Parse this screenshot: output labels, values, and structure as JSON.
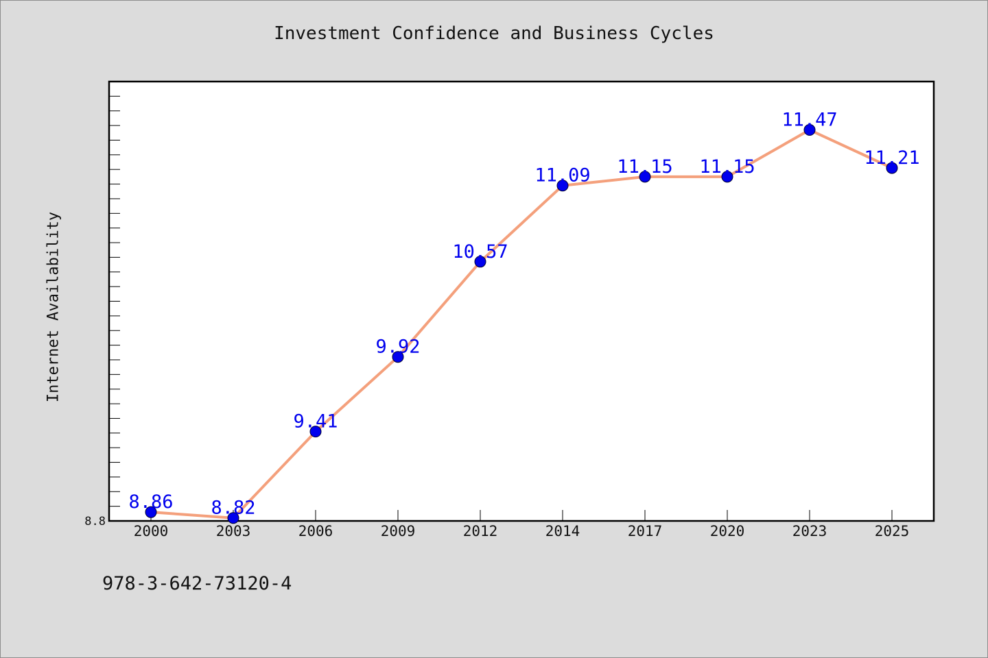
{
  "chart_data": {
    "type": "line",
    "title": "Investment Confidence and Business Cycles",
    "xlabel": "",
    "ylabel": "Internet Availability",
    "categories": [
      "2000",
      "2003",
      "2006",
      "2009",
      "2012",
      "2014",
      "2017",
      "2020",
      "2023",
      "2025"
    ],
    "series": [
      {
        "values": [
          8.86,
          8.82,
          9.41,
          9.92,
          10.57,
          11.09,
          11.15,
          11.15,
          11.47,
          11.21
        ],
        "labels": [
          "8.86",
          "8.82",
          "9.41",
          "9.92",
          "10.57",
          "11.09",
          "11.15",
          "11.15",
          "11.47",
          "11.21"
        ]
      }
    ],
    "ylim": [
      8.8,
      11.8
    ],
    "yticks_labeled": [
      "8.8"
    ],
    "grid": false,
    "legend": "none",
    "colors": {
      "line": "#f4a07c",
      "marker": "#0000ee",
      "data_label": "#0000ee",
      "plot_bg": "#ffffff",
      "figure_bg": "#dcdcdc"
    }
  },
  "footer": {
    "isbn": "978-3-642-73120-4"
  }
}
